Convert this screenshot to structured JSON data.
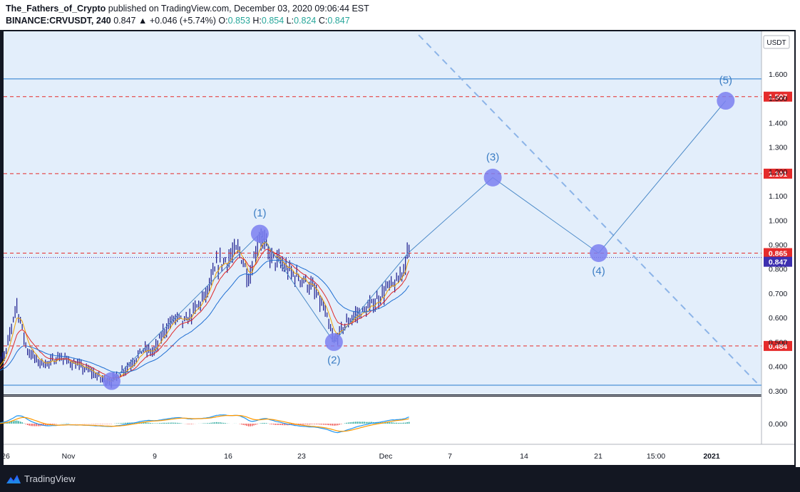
{
  "header": {
    "author": "The_Fathers_of_Crypto",
    "published": "published on TradingView.com, December 03, 2020 09:06:44 EST",
    "symbol": "BINANCE:CRVUSDT, 240",
    "last": "0.847",
    "change": "▲ +0.046 (+5.74%)",
    "o_label": "O:",
    "o_value": "0.853",
    "h_label": "H:",
    "h_value": "0.854",
    "l_label": "L:",
    "l_value": "0.824",
    "c_label": "C:",
    "c_value": "0.847"
  },
  "footer": {
    "brand": "TradingView"
  },
  "colors": {
    "background": "#131722",
    "chart_area": "#e3eefb",
    "bars": "#1a1a8c",
    "ema_fast": "#f0a000",
    "ema_mid": "#e02828",
    "ema_slow": "#1e6ed2",
    "wave": "#4c8ac8",
    "circle": "#7b7ff0",
    "dashed_level": "#e52b2b",
    "macd": "#2196f3",
    "signal": "#ff9800",
    "hist_up": "#26a69a",
    "hist_down": "#ef5350",
    "price_badge": "#3d2fb0"
  },
  "chart_data": {
    "type": "candlestick",
    "price_axis": {
      "currency": "USDT",
      "ticks": [
        "1.600",
        "1.500",
        "1.400",
        "1.300",
        "1.200",
        "1.100",
        "1.000",
        "0.900",
        "0.800",
        "0.700",
        "0.600",
        "0.500",
        "0.400",
        "0.300"
      ],
      "ylim": [
        0.285,
        1.775
      ]
    },
    "time_axis": {
      "ticks": [
        "26",
        "Nov",
        "9",
        "16",
        "23",
        "Dec",
        "7",
        "14",
        "21",
        "15:00",
        "2021"
      ]
    },
    "horizontal_levels": [
      {
        "value": 1.507,
        "label": "1.507",
        "style": "dashed"
      },
      {
        "value": 1.191,
        "label": "1.191",
        "style": "dashed"
      },
      {
        "value": 0.865,
        "label": "0.865",
        "style": "dashed"
      },
      {
        "value": 0.484,
        "label": "0.484",
        "style": "dashed"
      }
    ],
    "channel_lines": [
      1.58,
      0.323
    ],
    "current_price": {
      "value": 0.847,
      "label": "0.847"
    },
    "elliott_wave": [
      {
        "label": "",
        "date": "Nov 5",
        "price": 0.34
      },
      {
        "label": "(1)",
        "date": "Nov 19",
        "price": 0.945
      },
      {
        "label": "(2)",
        "date": "Nov 26",
        "price": 0.5
      },
      {
        "label": "",
        "date": "Dec 3",
        "price": 0.865
      },
      {
        "label": "(3)",
        "date": "Dec 11",
        "price": 1.175
      },
      {
        "label": "(4)",
        "date": "Dec 21",
        "price": 0.865
      },
      {
        "label": "(5)",
        "date": "Jan 2",
        "price": 1.49
      }
    ],
    "dashed_trendline": [
      {
        "date": "Dec 4",
        "price": 1.76
      },
      {
        "date": "Jan 5",
        "price": 0.33
      }
    ],
    "price_path": [
      [
        "Oct 25",
        0.39
      ],
      [
        "Oct 26",
        0.45
      ],
      [
        "Oct 27",
        0.66
      ],
      [
        "Oct 28",
        0.47
      ],
      [
        "Oct 29",
        0.42
      ],
      [
        "Oct 30",
        0.41
      ],
      [
        "Oct 31",
        0.44
      ],
      [
        "Nov 1",
        0.42
      ],
      [
        "Nov 2",
        0.4
      ],
      [
        "Nov 3",
        0.38
      ],
      [
        "Nov 4",
        0.35
      ],
      [
        "Nov 5",
        0.34
      ],
      [
        "Nov 6",
        0.38
      ],
      [
        "Nov 7",
        0.42
      ],
      [
        "Nov 8",
        0.47
      ],
      [
        "Nov 9",
        0.46
      ],
      [
        "Nov 10",
        0.55
      ],
      [
        "Nov 11",
        0.6
      ],
      [
        "Nov 12",
        0.58
      ],
      [
        "Nov 13",
        0.64
      ],
      [
        "Nov 14",
        0.7
      ],
      [
        "Nov 15",
        0.82
      ],
      [
        "Nov 16",
        0.84
      ],
      [
        "Nov 17",
        0.88
      ],
      [
        "Nov 18",
        0.76
      ],
      [
        "Nov 19",
        0.945
      ],
      [
        "Nov 20",
        0.85
      ],
      [
        "Nov 21",
        0.82
      ],
      [
        "Nov 22",
        0.78
      ],
      [
        "Nov 23",
        0.76
      ],
      [
        "Nov 24",
        0.72
      ],
      [
        "Nov 25",
        0.64
      ],
      [
        "Nov 26",
        0.5
      ],
      [
        "Nov 27",
        0.57
      ],
      [
        "Nov 28",
        0.61
      ],
      [
        "Nov 29",
        0.63
      ],
      [
        "Nov 30",
        0.67
      ],
      [
        "Dec 1",
        0.72
      ],
      [
        "Dec 2",
        0.74
      ],
      [
        "Dec 3",
        0.865
      ]
    ],
    "indicators": {
      "overlays": [
        "EMA fast",
        "EMA mid",
        "EMA slow"
      ],
      "macd_axis_ticks": [
        "0.000"
      ]
    }
  }
}
